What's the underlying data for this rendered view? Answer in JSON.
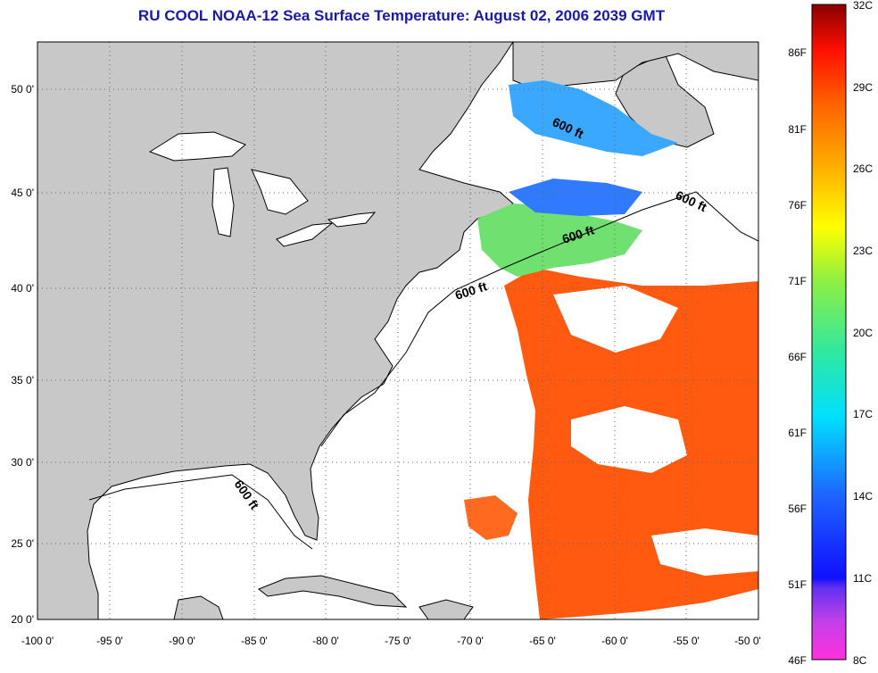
{
  "title": "RU COOL  NOAA-12  Sea Surface Temperature:  August 02, 2006 2039 GMT",
  "map": {
    "lon_range": [
      -100,
      -50
    ],
    "lat_range": [
      20,
      52.5
    ],
    "lon_ticks": [
      "-100 0'",
      "-95 0'",
      "-90 0'",
      "-85 0'",
      "-80 0'",
      "-75 0'",
      "-70 0'",
      "-65 0'",
      "-60 0'",
      "-55 0'",
      "-50 0'"
    ],
    "lat_ticks": [
      "20 0'",
      "25 0'",
      "30 0'",
      "35 0'",
      "40 0'",
      "45 0'",
      "50 0'"
    ],
    "contour_labels": [
      "600 ft",
      "600 ft",
      "600 ft",
      "600 ft",
      "600 ft"
    ],
    "colors": {
      "land": "#c8c8c8",
      "ocean": "#ffffff",
      "sst_warm": "#ff5a10",
      "sst_cool": "#3aa8ff"
    }
  },
  "colorbar": {
    "celsius_labels": [
      "32C",
      "29C",
      "26C",
      "23C",
      "20C",
      "17C",
      "14C",
      "11C",
      "8C"
    ],
    "fahrenheit_labels": [
      "86F",
      "81F",
      "76F",
      "71F",
      "66F",
      "61F",
      "56F",
      "51F",
      "46F"
    ]
  }
}
